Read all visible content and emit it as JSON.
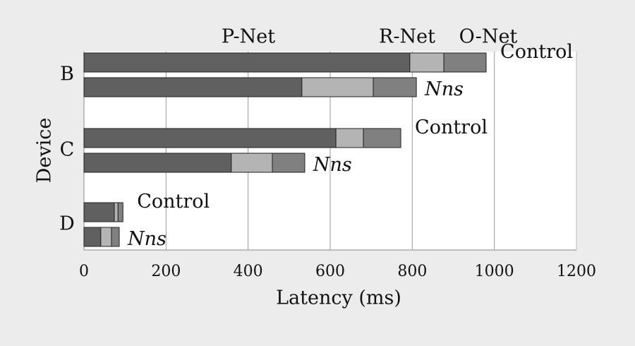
{
  "chart_data": {
    "type": "stacked-barh",
    "xlabel": "Latency (ms)",
    "ylabel": "Device",
    "groups": [
      "B",
      "C",
      "D"
    ],
    "categories": [
      "Control",
      "Nns",
      "Control",
      "Nns",
      "Control",
      "Nns"
    ],
    "series": [
      {
        "name": "P-Net",
        "color": "#606060",
        "values": [
          794,
          531,
          614,
          359,
          74,
          41
        ]
      },
      {
        "name": "R-Net",
        "color": "#b4b4b4",
        "values": [
          83,
          174,
          67,
          100,
          9,
          26
        ]
      },
      {
        "name": "O-Net",
        "color": "#808080",
        "values": [
          103,
          105,
          91,
          79,
          12,
          19
        ]
      }
    ],
    "xlim": [
      0,
      1200
    ],
    "xticks": [
      0,
      200,
      400,
      600,
      800,
      1000,
      1200
    ],
    "grid": true
  }
}
